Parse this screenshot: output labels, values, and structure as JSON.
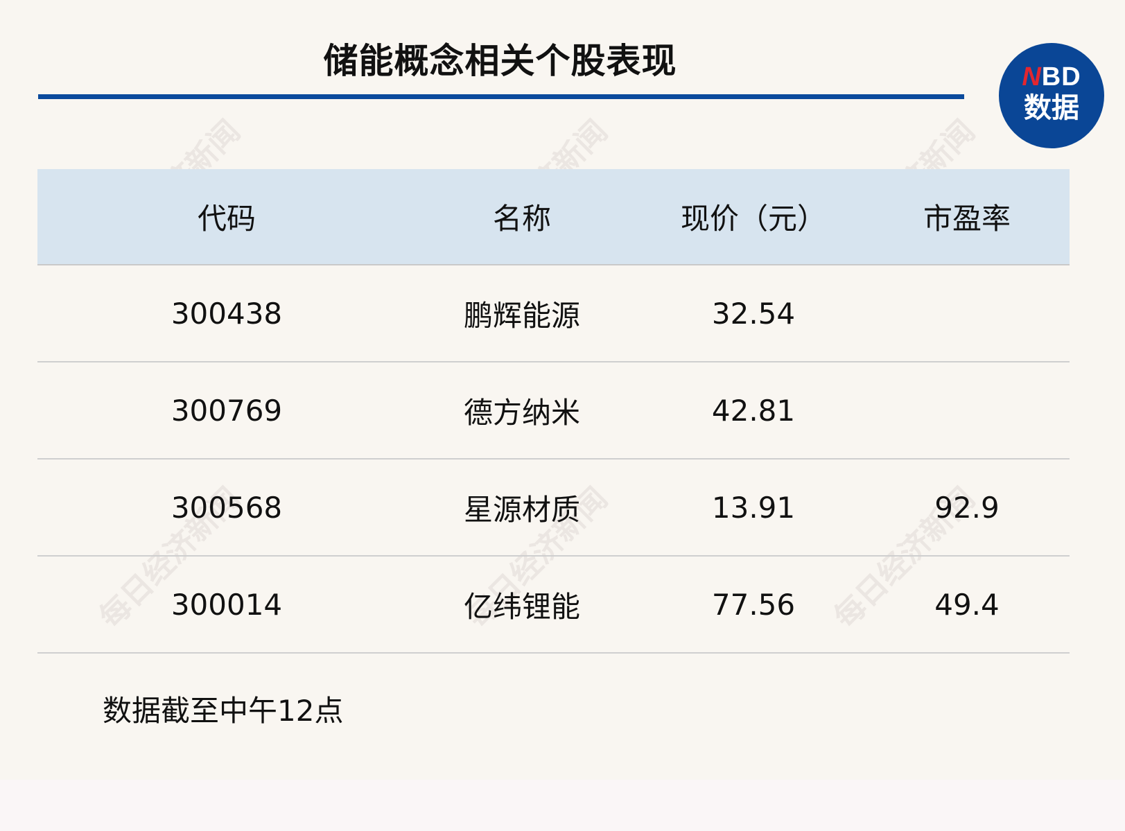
{
  "title": "储能概念相关个股表现",
  "logo": {
    "top": "NBD",
    "bottom": "数据"
  },
  "watermark": "每日经济新闻",
  "colors": {
    "accent": "#0b4a9c",
    "header_bg": "#d7e4ef",
    "logo_red": "#e3262f"
  },
  "table": {
    "headers": [
      "代码",
      "名称",
      "现价（元）",
      "市盈率"
    ],
    "rows": [
      [
        "300438",
        "鹏辉能源",
        "32.54",
        ""
      ],
      [
        "300769",
        "德方纳米",
        "42.81",
        ""
      ],
      [
        "300568",
        "星源材质",
        "13.91",
        "92.9"
      ],
      [
        "300014",
        "亿纬锂能",
        "77.56",
        "49.4"
      ]
    ]
  },
  "footnote": "数据截至中午12点"
}
